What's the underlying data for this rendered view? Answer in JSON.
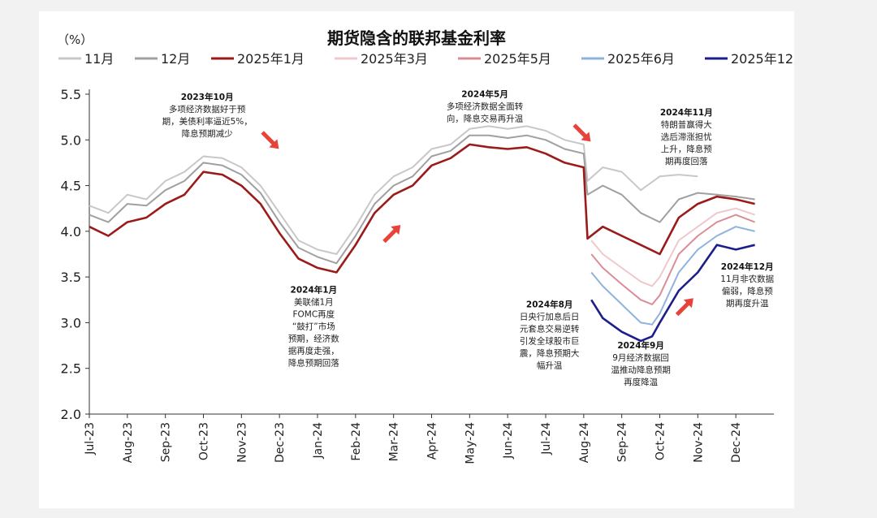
{
  "chart_data": {
    "type": "line",
    "title": "期货隐含的联邦基金利率",
    "unit_label": "（%）",
    "ylim": [
      2.0,
      5.5
    ],
    "yticks": [
      "2.0",
      "2.5",
      "3.0",
      "3.5",
      "4.0",
      "4.5",
      "5.0",
      "5.5"
    ],
    "x_tick_labels": [
      "Jul-23",
      "Aug-23",
      "Sep-23",
      "Oct-23",
      "Nov-23",
      "Dec-23",
      "Jan-24",
      "Feb-24",
      "Mar-24",
      "Apr-24",
      "May-24",
      "Jun-24",
      "Jul-24",
      "Aug-24",
      "Sep-24",
      "Oct-24",
      "Nov-24",
      "Dec-24"
    ],
    "grid": false,
    "legend_position": "top",
    "series": [
      {
        "name": "11月",
        "color": "#c8c8c8",
        "width": 2,
        "x": [
          0,
          0.5,
          1,
          1.5,
          2,
          2.5,
          3,
          3.5,
          4,
          4.5,
          5,
          5.5,
          6,
          6.5,
          7,
          7.5,
          8,
          8.5,
          9,
          9.5,
          10,
          10.5,
          11,
          11.5,
          12,
          12.5,
          13,
          13.1,
          13.5,
          14,
          14.5,
          15,
          15.5,
          16
        ],
        "y": [
          4.28,
          4.2,
          4.4,
          4.35,
          4.55,
          4.65,
          4.82,
          4.8,
          4.7,
          4.5,
          4.2,
          3.9,
          3.8,
          3.75,
          4.05,
          4.4,
          4.6,
          4.7,
          4.9,
          4.95,
          5.12,
          5.15,
          5.12,
          5.15,
          5.1,
          5.0,
          4.95,
          4.55,
          4.7,
          4.65,
          4.45,
          4.6,
          4.62,
          4.6
        ]
      },
      {
        "name": "12月",
        "color": "#a0a0a0",
        "width": 2,
        "x": [
          0,
          0.5,
          1,
          1.5,
          2,
          2.5,
          3,
          3.5,
          4,
          4.5,
          5,
          5.5,
          6,
          6.5,
          7,
          7.5,
          8,
          8.5,
          9,
          9.5,
          10,
          10.5,
          11,
          11.5,
          12,
          12.5,
          13,
          13.1,
          13.5,
          14,
          14.5,
          15,
          15.5,
          16,
          16.5,
          17,
          17.5
        ],
        "y": [
          4.18,
          4.1,
          4.3,
          4.28,
          4.45,
          4.55,
          4.75,
          4.72,
          4.62,
          4.42,
          4.1,
          3.82,
          3.72,
          3.65,
          3.95,
          4.3,
          4.5,
          4.6,
          4.82,
          4.88,
          5.05,
          5.05,
          5.02,
          5.05,
          5.0,
          4.9,
          4.85,
          4.4,
          4.5,
          4.4,
          4.2,
          4.1,
          4.35,
          4.42,
          4.4,
          4.38,
          4.35
        ]
      },
      {
        "name": "2025年1月",
        "color": "#9b1b1b",
        "width": 2.6,
        "x": [
          0,
          0.5,
          1,
          1.5,
          2,
          2.5,
          3,
          3.5,
          4,
          4.5,
          5,
          5.5,
          6,
          6.5,
          7,
          7.5,
          8,
          8.5,
          9,
          9.5,
          10,
          10.5,
          11,
          11.5,
          12,
          12.5,
          13,
          13.1,
          13.5,
          14,
          14.5,
          15,
          15.5,
          16,
          16.5,
          17,
          17.5
        ],
        "y": [
          4.05,
          3.95,
          4.1,
          4.15,
          4.3,
          4.4,
          4.65,
          4.62,
          4.5,
          4.3,
          3.98,
          3.7,
          3.6,
          3.55,
          3.85,
          4.2,
          4.4,
          4.5,
          4.72,
          4.8,
          4.95,
          4.92,
          4.9,
          4.92,
          4.85,
          4.75,
          4.7,
          3.92,
          4.05,
          3.95,
          3.85,
          3.75,
          4.15,
          4.3,
          4.38,
          4.35,
          4.3
        ]
      },
      {
        "name": "2025年3月",
        "color": "#efc8cc",
        "width": 2,
        "x": [
          13.2,
          13.5,
          14,
          14.5,
          14.8,
          15,
          15.5,
          16,
          16.5,
          17,
          17.5
        ],
        "y": [
          3.9,
          3.75,
          3.6,
          3.45,
          3.4,
          3.5,
          3.9,
          4.05,
          4.2,
          4.25,
          4.18
        ]
      },
      {
        "name": "2025年5月",
        "color": "#d98e96",
        "width": 2,
        "x": [
          13.2,
          13.5,
          14,
          14.5,
          14.8,
          15,
          15.5,
          16,
          16.5,
          17,
          17.5
        ],
        "y": [
          3.75,
          3.6,
          3.42,
          3.25,
          3.2,
          3.3,
          3.75,
          3.95,
          4.1,
          4.18,
          4.1
        ]
      },
      {
        "name": "2025年6月",
        "color": "#8fb2de",
        "width": 2,
        "x": [
          13.2,
          13.5,
          14,
          14.5,
          14.8,
          15,
          15.5,
          16,
          16.5,
          17,
          17.5
        ],
        "y": [
          3.55,
          3.4,
          3.2,
          3.0,
          2.98,
          3.1,
          3.55,
          3.8,
          3.95,
          4.05,
          4.0
        ]
      },
      {
        "name": "2025年12月",
        "color": "#1c1e8c",
        "width": 2.6,
        "x": [
          13.2,
          13.5,
          14,
          14.5,
          14.8,
          15,
          15.5,
          16,
          16.5,
          17,
          17.5
        ],
        "y": [
          3.25,
          3.05,
          2.9,
          2.8,
          2.85,
          3.0,
          3.35,
          3.55,
          3.85,
          3.8,
          3.85
        ]
      }
    ],
    "annotations": [
      {
        "head": "2023年10月",
        "lines": [
          "多项经济数据好于预",
          "期，美债利率逼近5%，",
          "降息预期减少"
        ],
        "x": 3.1,
        "y": 5.44,
        "arrow": {
          "x": 4.7,
          "y": 5.02,
          "dir": "down"
        }
      },
      {
        "head": "2024年1月",
        "lines": [
          "美联储1月",
          "FOMC再度",
          "“鼓打”市场",
          "预期，经济数",
          "据再度走强，",
          "降息预期回落"
        ],
        "x": 5.9,
        "y": 3.33,
        "arrow": {
          "x": 7.9,
          "y": 3.95,
          "dir": "up"
        }
      },
      {
        "head": "2024年5月",
        "lines": [
          "多项经济数据全面转",
          "向，降息交易再升温"
        ],
        "x": 10.4,
        "y": 5.47,
        "arrow": {
          "x": 12.9,
          "y": 5.1,
          "dir": "down"
        }
      },
      {
        "head": "2024年11月",
        "lines": [
          "特朗普赢得大",
          "选后滞涨担忧",
          "上升，降息预",
          "期再度回落"
        ],
        "x": 15.7,
        "y": 5.27
      },
      {
        "head": "2024年8月",
        "lines": [
          "日央行加息后日",
          "元套息交易逆转",
          "引发全球股市巨",
          "震，降息预期大",
          "幅升温"
        ],
        "x": 12.1,
        "y": 3.17
      },
      {
        "head": "2024年9月",
        "lines": [
          "9月经济数据回",
          "温推动降息预期",
          "再度降温"
        ],
        "x": 14.5,
        "y": 2.72
      },
      {
        "head": "2024年12月",
        "lines": [
          "11月非农数据",
          "偏弱，降息预",
          "期再度升温"
        ],
        "x": 17.3,
        "y": 3.58,
        "arrow": {
          "x": 15.6,
          "y": 3.15,
          "dir": "up"
        }
      }
    ]
  }
}
